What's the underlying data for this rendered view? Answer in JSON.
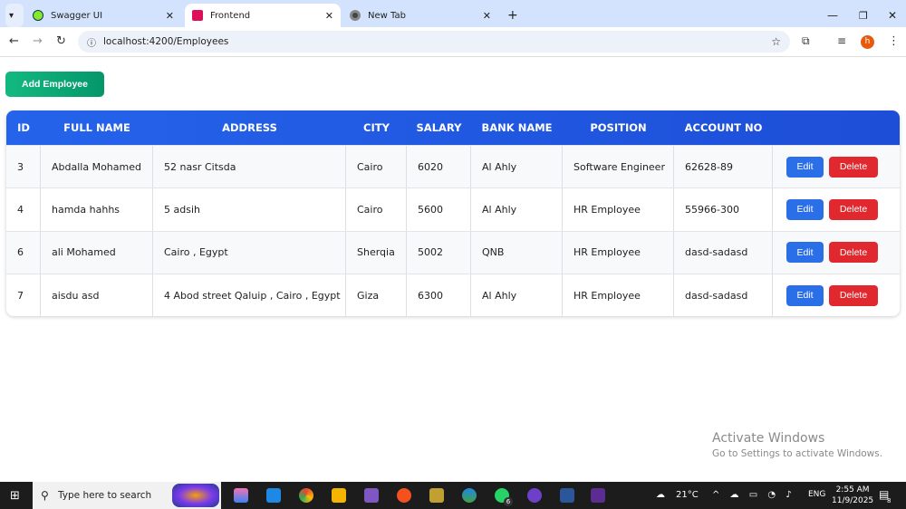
{
  "browser": {
    "tabs": [
      {
        "label": "Swagger UI",
        "icon": "swagger-icon",
        "active": false
      },
      {
        "label": "Frontend",
        "icon": "angular-icon",
        "active": true
      },
      {
        "label": "New Tab",
        "icon": "chrome-icon",
        "active": false
      }
    ],
    "url": "localhost:4200/Employees",
    "profile_initial": "h"
  },
  "page": {
    "add_button": "Add Employee",
    "columns": [
      "ID",
      "FULL NAME",
      "ADDRESS",
      "CITY",
      "SALARY",
      "BANK NAME",
      "POSITION",
      "ACCOUNT NO",
      ""
    ],
    "rows": [
      {
        "id": "3",
        "name": "Abdalla Mohamed",
        "address": "52 nasr Citsda",
        "city": "Cairo",
        "salary": "6020",
        "bank": "Al Ahly",
        "position": "Software Engineer",
        "account": "62628-89"
      },
      {
        "id": "4",
        "name": "hamda hahhs",
        "address": "5 adsih",
        "city": "Cairo",
        "salary": "5600",
        "bank": "Al Ahly",
        "position": "HR Employee",
        "account": "55966-300"
      },
      {
        "id": "6",
        "name": "ali Mohamed",
        "address": "Cairo , Egypt",
        "city": "Sherqia",
        "salary": "5002",
        "bank": "QNB",
        "position": "HR Employee",
        "account": "dasd-sadasd"
      },
      {
        "id": "7",
        "name": "aisdu asd",
        "address": "4 Abod street Qaluip , Cairo , Egypt",
        "city": "Giza",
        "salary": "6300",
        "bank": "Al Ahly",
        "position": "HR Employee",
        "account": "dasd-sadasd"
      }
    ],
    "edit_label": "Edit",
    "delete_label": "Delete",
    "colors": {
      "header": "#2563eb",
      "add": "#10b981",
      "edit": "#2b6fe8",
      "delete": "#e0282e"
    }
  },
  "watermark": {
    "title": "Activate Windows",
    "subtitle": "Go to Settings to activate Windows."
  },
  "taskbar": {
    "search_placeholder": "Type here to search",
    "weather": "21°C",
    "lang": "ENG",
    "time": "2:55 AM",
    "date": "11/9/2025",
    "whatsapp_badge": "6",
    "notifications": "8"
  }
}
